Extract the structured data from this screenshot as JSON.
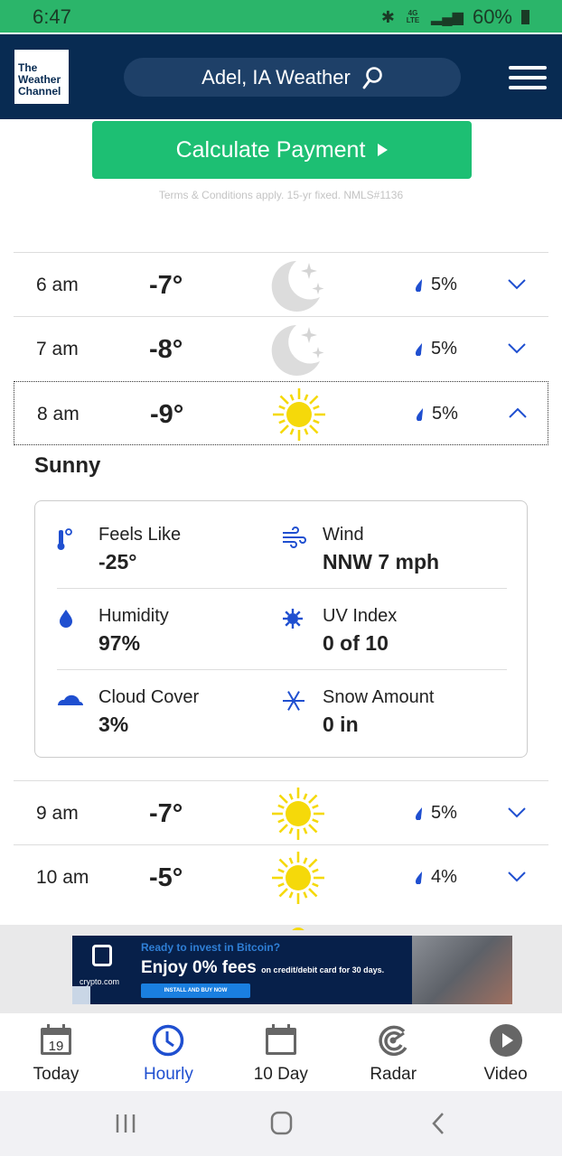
{
  "status_bar": {
    "time": "6:47",
    "battery": "60%",
    "network": "4G LTE"
  },
  "header": {
    "logo": "The Weather Channel",
    "search_label": "Adel, IA Weather",
    "search_icon": "search-icon",
    "menu_icon": "hamburger-icon"
  },
  "promo": {
    "button_label": "Calculate Payment",
    "terms": "Terms & Conditions apply. 15-yr fixed. NMLS#1136"
  },
  "hours": [
    {
      "time": "6 am",
      "temp": "-7°",
      "icon": "moon-stars",
      "precip": "5%",
      "expanded": false
    },
    {
      "time": "7 am",
      "temp": "-8°",
      "icon": "moon-stars",
      "precip": "5%",
      "expanded": false
    },
    {
      "time": "8 am",
      "temp": "-9°",
      "icon": "sun",
      "precip": "5%",
      "expanded": true
    },
    {
      "time": "9 am",
      "temp": "-7°",
      "icon": "sun",
      "precip": "5%",
      "expanded": false
    },
    {
      "time": "10 am",
      "temp": "-5°",
      "icon": "sun",
      "precip": "4%",
      "expanded": false
    }
  ],
  "details": {
    "condition": "Sunny",
    "items": [
      {
        "label": "Feels Like",
        "value": "-25°",
        "icon": "thermometer-icon"
      },
      {
        "label": "Wind",
        "value": "NNW 7 mph",
        "icon": "wind-icon"
      },
      {
        "label": "Humidity",
        "value": "97%",
        "icon": "drop-icon"
      },
      {
        "label": "UV Index",
        "value": "0 of 10",
        "icon": "uv-icon"
      },
      {
        "label": "Cloud Cover",
        "value": "3%",
        "icon": "cloud-icon"
      },
      {
        "label": "Snow Amount",
        "value": "0 in",
        "icon": "snowflake-icon"
      }
    ]
  },
  "ad": {
    "question": "Ready to invest in Bitcoin?",
    "headline": "Enjoy 0% fees",
    "subline": "on credit/debit card for 30 days.",
    "cta": "INSTALL AND BUY NOW",
    "brand": "crypto.com"
  },
  "bottom_nav": {
    "items": [
      {
        "label": "Today",
        "icon": "calendar-day-icon",
        "date": "19"
      },
      {
        "label": "Hourly",
        "icon": "clock-icon",
        "active": true
      },
      {
        "label": "10 Day",
        "icon": "calendar-icon"
      },
      {
        "label": "Radar",
        "icon": "radar-icon"
      },
      {
        "label": "Video",
        "icon": "play-icon"
      }
    ]
  },
  "colors": {
    "accent": "#1f4fd0",
    "header": "#082b52",
    "promo": "#1dbf73",
    "status": "#2bb56a",
    "sun": "#f5d90a"
  }
}
